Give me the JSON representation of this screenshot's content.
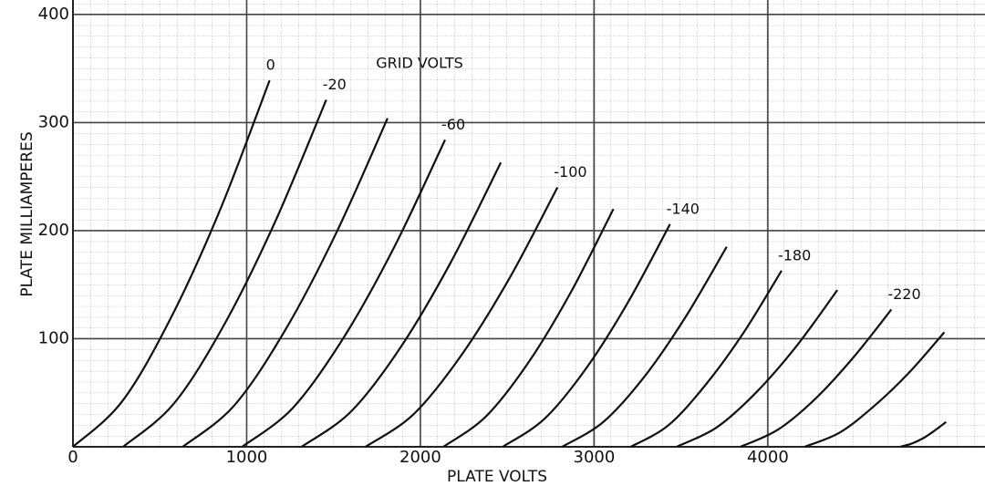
{
  "chart_data": {
    "type": "line",
    "xlabel": "PLATE VOLTS",
    "ylabel": "PLATE MILLIAMPERES",
    "annotation": "GRID VOLTS",
    "xlim": [
      0,
      5250
    ],
    "ylim": [
      0,
      410
    ],
    "xticks": [
      0,
      1000,
      2000,
      3000,
      4000
    ],
    "yticks": [
      100,
      200,
      300,
      400
    ],
    "grid": true,
    "series": [
      {
        "name": "0",
        "color": "#111",
        "x": [
          0,
          283,
          566,
          849,
          1132
        ],
        "values": [
          0,
          42,
          120,
          220,
          339
        ]
      },
      {
        "name": "-20",
        "color": "#111",
        "x": [
          289,
          581,
          874,
          1166,
          1458
        ],
        "values": [
          0,
          40,
          114,
          209,
          321
        ]
      },
      {
        "color": "#111",
        "x": [
          632,
          927,
          1222,
          1516,
          1811
        ],
        "values": [
          0,
          38,
          108,
          198,
          304
        ]
      },
      {
        "name": "-60",
        "color": "#111",
        "x": [
          974,
          1266,
          1558,
          1850,
          2142
        ],
        "values": [
          0,
          36,
          101,
          185,
          284
        ]
      },
      {
        "color": "#111",
        "x": [
          1316,
          1603,
          1890,
          2176,
          2463
        ],
        "values": [
          0,
          33,
          93,
          171,
          263
        ]
      },
      {
        "name": "-100",
        "color": "#111",
        "x": [
          1684,
          1960,
          2237,
          2513,
          2789
        ],
        "values": [
          0,
          30,
          85,
          156,
          240
        ]
      },
      {
        "color": "#111",
        "x": [
          2132,
          2377,
          2622,
          2866,
          3111
        ],
        "values": [
          0,
          28,
          78,
          143,
          220
        ]
      },
      {
        "name": "-140",
        "color": "#111",
        "x": [
          2474,
          2715,
          2956,
          3196,
          3437
        ],
        "values": [
          0,
          26,
          73,
          134,
          206
        ]
      },
      {
        "color": "#111",
        "x": [
          2816,
          3053,
          3290,
          3526,
          3763
        ],
        "values": [
          0,
          23,
          65,
          120,
          185
        ]
      },
      {
        "name": "-180",
        "color": "#111",
        "x": [
          3211,
          3428,
          3645,
          3862,
          4079
        ],
        "values": [
          0,
          20,
          58,
          106,
          163
        ]
      },
      {
        "color": "#111",
        "x": [
          3474,
          3706,
          3937,
          4169,
          4400
        ],
        "values": [
          0,
          18,
          51,
          94,
          145
        ]
      },
      {
        "name": "-220",
        "color": "#111",
        "x": [
          3842,
          4059,
          4277,
          4494,
          4711
        ],
        "values": [
          0,
          16,
          45,
          83,
          127
        ]
      },
      {
        "color": "#111",
        "x": [
          4211,
          4412,
          4614,
          4815,
          5016
        ],
        "values": [
          0,
          13,
          38,
          69,
          106
        ]
      },
      {
        "color": "#111",
        "x": [
          4763,
          4829,
          4895,
          4960,
          5026
        ],
        "values": [
          0,
          3,
          8,
          15,
          23
        ]
      }
    ]
  }
}
